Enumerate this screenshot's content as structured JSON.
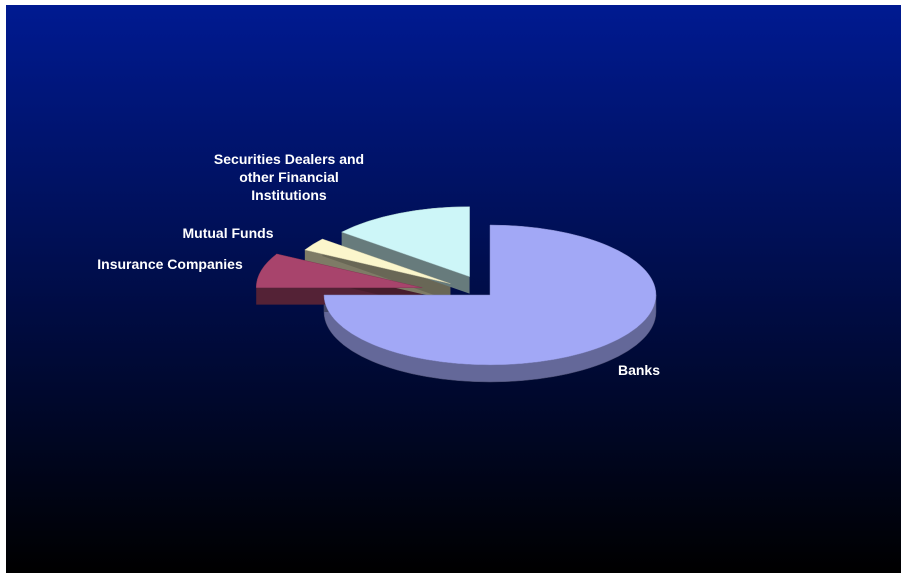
{
  "chart_data": {
    "type": "pie",
    "style": "3d-exploded",
    "title": "",
    "slices": [
      {
        "label": "Banks",
        "label_lines": [
          "Banks"
        ],
        "value": 75,
        "color": "#a2a8f6"
      },
      {
        "label": "Insurance Companies",
        "label_lines": [
          "Insurance Companies"
        ],
        "value": 8,
        "color": "#a8446c"
      },
      {
        "label": "Mutual Funds",
        "label_lines": [
          "Mutual Funds"
        ],
        "value": 3,
        "color": "#fbf6cc"
      },
      {
        "label": "Securities Dealers and other Financial Institutions",
        "label_lines": [
          "Securities Dealers and",
          "other Financial",
          "Institutions"
        ],
        "value": 14,
        "color": "#cdf6f8"
      }
    ],
    "legend": "none",
    "background": {
      "top": "#001a91",
      "bottom": "#000000"
    }
  }
}
